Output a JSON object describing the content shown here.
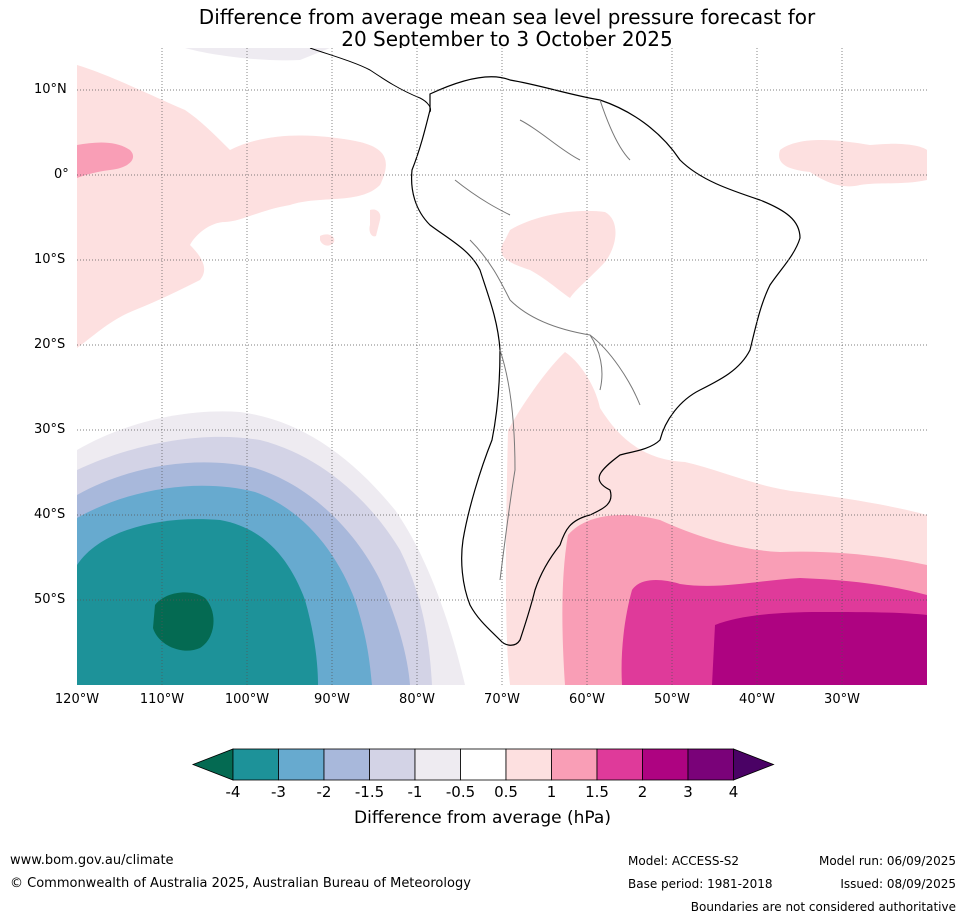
{
  "title_line1": "Difference from average mean sea level pressure forecast for",
  "title_line2": "20 September to 3 October 2025",
  "latitude_labels": [
    "10°N",
    "0°",
    "10°S",
    "20°S",
    "30°S",
    "40°S",
    "50°S"
  ],
  "longitude_labels": [
    "120°W",
    "110°W",
    "100°W",
    "90°W",
    "80°W",
    "70°W",
    "60°W",
    "50°W",
    "40°W",
    "30°W"
  ],
  "colorbar": {
    "title": "Difference from average (hPa)",
    "tick_labels": [
      "-4",
      "-3",
      "-2",
      "-1.5",
      "-1",
      "-0.5",
      "0.5",
      "1",
      "1.5",
      "2",
      "3",
      "4"
    ],
    "colors": [
      "#046a52",
      "#1d9299",
      "#67aacf",
      "#a8b8db",
      "#d3d3e6",
      "#eeebf1",
      "#ffffff",
      "#fde0e0",
      "#f99eb6",
      "#df3a9a",
      "#ae0381",
      "#7a0279",
      "#4a0265"
    ]
  },
  "footer": {
    "url": "www.bom.gov.au/climate",
    "copyright": "© Commonwealth of Australia 2025, Australian Bureau of Meteorology",
    "model": "Model: ACCESS-S2",
    "base_period": "Base period: 1981-2018",
    "model_run": "Model run: 06/09/2025",
    "issued": "Issued: 08/09/2025",
    "disclaimer": "Boundaries are not considered authoritative"
  }
}
